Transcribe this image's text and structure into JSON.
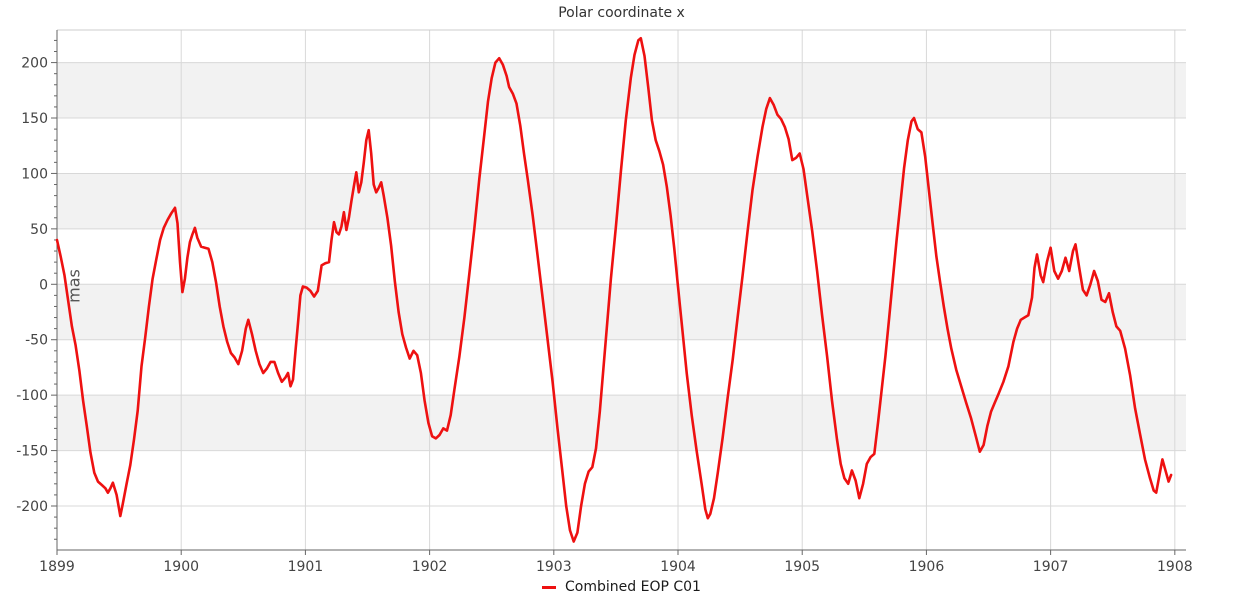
{
  "chart_data": {
    "type": "line",
    "title": "Polar coordinate x",
    "ylabel": "mas",
    "xlabel": "",
    "xlim": [
      1899,
      1908.09
    ],
    "ylim": [
      -239.7,
      229.4
    ],
    "x_ticks": [
      1899,
      1900,
      1901,
      1902,
      1903,
      1904,
      1905,
      1906,
      1907,
      1908
    ],
    "y_ticks": [
      -200,
      -150,
      -100,
      -50,
      0,
      50,
      100,
      150,
      200
    ],
    "y_minor_step": 10,
    "grid": true,
    "legend_position": "bottom-center",
    "colors": {
      "line": "#ee1111",
      "grid": "#d8d8d8",
      "band": "#f2f2f2",
      "spine": "#666666",
      "top_border": "#cccccc",
      "tick_label": "#444444",
      "title": "#333333"
    },
    "series": [
      {
        "name": "Combined EOP C01",
        "color": "#ee1111",
        "points": [
          [
            1899.0,
            40
          ],
          [
            1899.03,
            25
          ],
          [
            1899.06,
            8
          ],
          [
            1899.09,
            -15
          ],
          [
            1899.12,
            -38
          ],
          [
            1899.15,
            -55
          ],
          [
            1899.18,
            -78
          ],
          [
            1899.21,
            -105
          ],
          [
            1899.24,
            -128
          ],
          [
            1899.27,
            -152
          ],
          [
            1899.3,
            -170
          ],
          [
            1899.33,
            -178
          ],
          [
            1899.36,
            -181
          ],
          [
            1899.39,
            -184
          ],
          [
            1899.41,
            -188
          ],
          [
            1899.43,
            -184
          ],
          [
            1899.45,
            -179
          ],
          [
            1899.48,
            -190
          ],
          [
            1899.51,
            -209
          ],
          [
            1899.53,
            -198
          ],
          [
            1899.56,
            -180
          ],
          [
            1899.59,
            -163
          ],
          [
            1899.62,
            -140
          ],
          [
            1899.65,
            -114
          ],
          [
            1899.68,
            -74
          ],
          [
            1899.71,
            -48
          ],
          [
            1899.74,
            -20
          ],
          [
            1899.77,
            5
          ],
          [
            1899.8,
            23
          ],
          [
            1899.83,
            40
          ],
          [
            1899.86,
            51
          ],
          [
            1899.89,
            58
          ],
          [
            1899.92,
            64
          ],
          [
            1899.95,
            69
          ],
          [
            1899.97,
            55
          ],
          [
            1899.99,
            20
          ],
          [
            1900.01,
            -7
          ],
          [
            1900.03,
            5
          ],
          [
            1900.05,
            24
          ],
          [
            1900.07,
            38
          ],
          [
            1900.09,
            45
          ],
          [
            1900.11,
            51
          ],
          [
            1900.13,
            42
          ],
          [
            1900.16,
            34
          ],
          [
            1900.19,
            33
          ],
          [
            1900.22,
            32
          ],
          [
            1900.25,
            20
          ],
          [
            1900.28,
            2
          ],
          [
            1900.31,
            -20
          ],
          [
            1900.34,
            -38
          ],
          [
            1900.37,
            -52
          ],
          [
            1900.4,
            -62
          ],
          [
            1900.43,
            -66
          ],
          [
            1900.46,
            -72
          ],
          [
            1900.49,
            -60
          ],
          [
            1900.52,
            -40
          ],
          [
            1900.54,
            -32
          ],
          [
            1900.57,
            -45
          ],
          [
            1900.6,
            -60
          ],
          [
            1900.63,
            -72
          ],
          [
            1900.66,
            -80
          ],
          [
            1900.69,
            -76
          ],
          [
            1900.72,
            -70
          ],
          [
            1900.75,
            -70
          ],
          [
            1900.78,
            -80
          ],
          [
            1900.81,
            -88
          ],
          [
            1900.84,
            -84
          ],
          [
            1900.86,
            -80
          ],
          [
            1900.88,
            -92
          ],
          [
            1900.9,
            -86
          ],
          [
            1900.92,
            -60
          ],
          [
            1900.94,
            -35
          ],
          [
            1900.96,
            -10
          ],
          [
            1900.98,
            -2
          ],
          [
            1901.01,
            -3
          ],
          [
            1901.04,
            -6
          ],
          [
            1901.07,
            -11
          ],
          [
            1901.1,
            -6
          ],
          [
            1901.13,
            17
          ],
          [
            1901.16,
            19
          ],
          [
            1901.19,
            20
          ],
          [
            1901.21,
            40
          ],
          [
            1901.23,
            56
          ],
          [
            1901.25,
            47
          ],
          [
            1901.27,
            45
          ],
          [
            1901.29,
            52
          ],
          [
            1901.31,
            65
          ],
          [
            1901.33,
            49
          ],
          [
            1901.35,
            60
          ],
          [
            1901.37,
            75
          ],
          [
            1901.39,
            88
          ],
          [
            1901.41,
            101
          ],
          [
            1901.43,
            83
          ],
          [
            1901.45,
            92
          ],
          [
            1901.47,
            110
          ],
          [
            1901.49,
            130
          ],
          [
            1901.51,
            139
          ],
          [
            1901.53,
            118
          ],
          [
            1901.55,
            90
          ],
          [
            1901.57,
            83
          ],
          [
            1901.59,
            87
          ],
          [
            1901.61,
            92
          ],
          [
            1901.63,
            80
          ],
          [
            1901.66,
            60
          ],
          [
            1901.69,
            35
          ],
          [
            1901.72,
            3
          ],
          [
            1901.75,
            -25
          ],
          [
            1901.78,
            -45
          ],
          [
            1901.81,
            -57
          ],
          [
            1901.84,
            -67
          ],
          [
            1901.87,
            -60
          ],
          [
            1901.9,
            -64
          ],
          [
            1901.93,
            -80
          ],
          [
            1901.96,
            -105
          ],
          [
            1901.99,
            -125
          ],
          [
            1902.02,
            -137
          ],
          [
            1902.05,
            -139
          ],
          [
            1902.08,
            -136
          ],
          [
            1902.11,
            -130
          ],
          [
            1902.14,
            -132
          ],
          [
            1902.17,
            -118
          ],
          [
            1902.2,
            -95
          ],
          [
            1902.24,
            -65
          ],
          [
            1902.28,
            -30
          ],
          [
            1902.32,
            10
          ],
          [
            1902.36,
            50
          ],
          [
            1902.4,
            95
          ],
          [
            1902.44,
            135
          ],
          [
            1902.47,
            165
          ],
          [
            1902.5,
            186
          ],
          [
            1902.53,
            200
          ],
          [
            1902.56,
            204
          ],
          [
            1902.59,
            198
          ],
          [
            1902.62,
            188
          ],
          [
            1902.64,
            178
          ],
          [
            1902.67,
            172
          ],
          [
            1902.7,
            163
          ],
          [
            1902.73,
            143
          ],
          [
            1902.76,
            118
          ],
          [
            1902.79,
            95
          ],
          [
            1902.83,
            62
          ],
          [
            1902.87,
            25
          ],
          [
            1902.91,
            -12
          ],
          [
            1902.95,
            -50
          ],
          [
            1902.99,
            -88
          ],
          [
            1903.03,
            -130
          ],
          [
            1903.07,
            -170
          ],
          [
            1903.1,
            -200
          ],
          [
            1903.13,
            -222
          ],
          [
            1903.16,
            -232
          ],
          [
            1903.19,
            -224
          ],
          [
            1903.22,
            -200
          ],
          [
            1903.25,
            -180
          ],
          [
            1903.28,
            -169
          ],
          [
            1903.31,
            -165
          ],
          [
            1903.34,
            -148
          ],
          [
            1903.37,
            -115
          ],
          [
            1903.4,
            -75
          ],
          [
            1903.43,
            -35
          ],
          [
            1903.46,
            5
          ],
          [
            1903.5,
            52
          ],
          [
            1903.54,
            102
          ],
          [
            1903.58,
            148
          ],
          [
            1903.62,
            186
          ],
          [
            1903.65,
            207
          ],
          [
            1903.68,
            220
          ],
          [
            1903.7,
            222
          ],
          [
            1903.73,
            206
          ],
          [
            1903.76,
            178
          ],
          [
            1903.79,
            148
          ],
          [
            1903.82,
            130
          ],
          [
            1903.85,
            120
          ],
          [
            1903.88,
            108
          ],
          [
            1903.91,
            88
          ],
          [
            1903.94,
            62
          ],
          [
            1903.97,
            32
          ],
          [
            1904.0,
            -2
          ],
          [
            1904.03,
            -35
          ],
          [
            1904.07,
            -80
          ],
          [
            1904.11,
            -118
          ],
          [
            1904.15,
            -150
          ],
          [
            1904.19,
            -180
          ],
          [
            1904.22,
            -203
          ],
          [
            1904.24,
            -211
          ],
          [
            1904.26,
            -207
          ],
          [
            1904.29,
            -193
          ],
          [
            1904.32,
            -170
          ],
          [
            1904.36,
            -138
          ],
          [
            1904.4,
            -102
          ],
          [
            1904.44,
            -68
          ],
          [
            1904.48,
            -30
          ],
          [
            1904.52,
            8
          ],
          [
            1904.56,
            48
          ],
          [
            1904.6,
            85
          ],
          [
            1904.64,
            115
          ],
          [
            1904.68,
            142
          ],
          [
            1904.71,
            158
          ],
          [
            1904.74,
            168
          ],
          [
            1904.77,
            162
          ],
          [
            1904.8,
            153
          ],
          [
            1904.83,
            149
          ],
          [
            1904.86,
            142
          ],
          [
            1904.89,
            131
          ],
          [
            1904.92,
            112
          ],
          [
            1904.95,
            114
          ],
          [
            1904.98,
            118
          ],
          [
            1905.01,
            104
          ],
          [
            1905.04,
            80
          ],
          [
            1905.08,
            48
          ],
          [
            1905.12,
            12
          ],
          [
            1905.16,
            -28
          ],
          [
            1905.2,
            -65
          ],
          [
            1905.24,
            -105
          ],
          [
            1905.28,
            -140
          ],
          [
            1905.31,
            -162
          ],
          [
            1905.34,
            -175
          ],
          [
            1905.37,
            -180
          ],
          [
            1905.4,
            -168
          ],
          [
            1905.43,
            -177
          ],
          [
            1905.46,
            -193
          ],
          [
            1905.49,
            -180
          ],
          [
            1905.52,
            -162
          ],
          [
            1905.55,
            -156
          ],
          [
            1905.58,
            -153
          ],
          [
            1905.61,
            -125
          ],
          [
            1905.64,
            -95
          ],
          [
            1905.67,
            -65
          ],
          [
            1905.7,
            -30
          ],
          [
            1905.73,
            5
          ],
          [
            1905.76,
            40
          ],
          [
            1905.79,
            72
          ],
          [
            1905.82,
            105
          ],
          [
            1905.85,
            130
          ],
          [
            1905.88,
            147
          ],
          [
            1905.9,
            150
          ],
          [
            1905.93,
            140
          ],
          [
            1905.96,
            137
          ],
          [
            1905.99,
            115
          ],
          [
            1906.02,
            85
          ],
          [
            1906.05,
            55
          ],
          [
            1906.08,
            25
          ],
          [
            1906.11,
            2
          ],
          [
            1906.14,
            -20
          ],
          [
            1906.17,
            -40
          ],
          [
            1906.2,
            -58
          ],
          [
            1906.24,
            -77
          ],
          [
            1906.28,
            -92
          ],
          [
            1906.32,
            -107
          ],
          [
            1906.36,
            -121
          ],
          [
            1906.4,
            -138
          ],
          [
            1906.43,
            -151
          ],
          [
            1906.46,
            -145
          ],
          [
            1906.49,
            -128
          ],
          [
            1906.52,
            -115
          ],
          [
            1906.55,
            -107
          ],
          [
            1906.58,
            -99
          ],
          [
            1906.62,
            -88
          ],
          [
            1906.66,
            -74
          ],
          [
            1906.7,
            -52
          ],
          [
            1906.73,
            -40
          ],
          [
            1906.76,
            -32
          ],
          [
            1906.79,
            -30
          ],
          [
            1906.82,
            -28
          ],
          [
            1906.85,
            -12
          ],
          [
            1906.87,
            15
          ],
          [
            1906.89,
            27
          ],
          [
            1906.92,
            8
          ],
          [
            1906.94,
            2
          ],
          [
            1906.97,
            20
          ],
          [
            1907.0,
            33
          ],
          [
            1907.03,
            12
          ],
          [
            1907.06,
            5
          ],
          [
            1907.09,
            12
          ],
          [
            1907.12,
            24
          ],
          [
            1907.15,
            12
          ],
          [
            1907.18,
            30
          ],
          [
            1907.2,
            36
          ],
          [
            1907.23,
            15
          ],
          [
            1907.26,
            -5
          ],
          [
            1907.29,
            -10
          ],
          [
            1907.32,
            0
          ],
          [
            1907.35,
            12
          ],
          [
            1907.38,
            3
          ],
          [
            1907.41,
            -14
          ],
          [
            1907.44,
            -16
          ],
          [
            1907.47,
            -8
          ],
          [
            1907.5,
            -25
          ],
          [
            1907.53,
            -38
          ],
          [
            1907.56,
            -42
          ],
          [
            1907.6,
            -58
          ],
          [
            1907.64,
            -82
          ],
          [
            1907.68,
            -112
          ],
          [
            1907.72,
            -135
          ],
          [
            1907.76,
            -158
          ],
          [
            1907.8,
            -175
          ],
          [
            1907.83,
            -186
          ],
          [
            1907.85,
            -188
          ],
          [
            1907.88,
            -170
          ],
          [
            1907.9,
            -158
          ],
          [
            1907.93,
            -170
          ],
          [
            1907.95,
            -178
          ],
          [
            1907.97,
            -172
          ]
        ]
      }
    ]
  }
}
